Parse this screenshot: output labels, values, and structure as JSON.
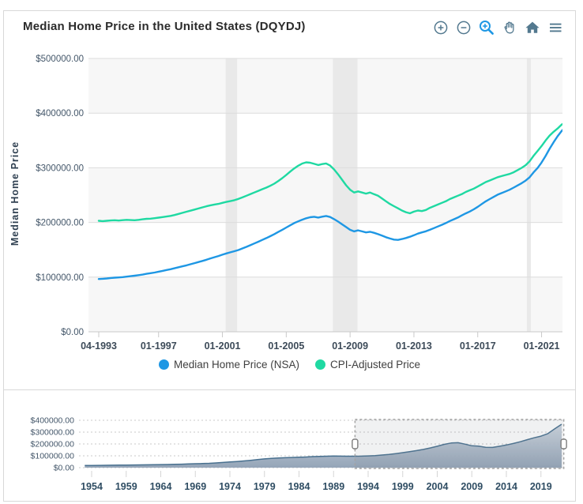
{
  "header": {
    "title": "Median Home Price in the United States (DQYDJ)"
  },
  "toolbar": {
    "icon_color": "#53798f",
    "active_icon_color": "#1e97e4",
    "buttons": [
      "zoom-in",
      "zoom-out",
      "box-zoom",
      "pan",
      "reset-home",
      "menu"
    ],
    "active_button": "box-zoom"
  },
  "colors": {
    "card_border": "#d8d8d8",
    "plot_band_gray": "#f7f7f7",
    "recession_band": "#e9e9e9",
    "gridline": "#dcdcdc",
    "axis_line": "#c9c9c9",
    "nav_grid_dotted": "#c8c8c8",
    "nav_line": "#48708f",
    "nav_fill_top": "#ccd5df",
    "nav_fill_bottom": "#8fa0b4",
    "selection_border": "#a3a3a3"
  },
  "chart_data": [
    {
      "type": "line",
      "title": "Median Home Price in the United States (DQYDJ)",
      "xlabel": "",
      "ylabel": "Median Home Price",
      "ylim": [
        0,
        500000
      ],
      "grid": "horizontal gridlines with alternating interlaced gray bands",
      "legend_position": "bottom",
      "y_tick_labels": [
        "$500000.00",
        "$400000.00",
        "$300000.00",
        "$200000.00",
        "$100000.00",
        "$0.00"
      ],
      "x_ticks": [
        {
          "label": "04-1993",
          "year": 1993.25
        },
        {
          "label": "01-1997",
          "year": 1997
        },
        {
          "label": "01-2001",
          "year": 2001
        },
        {
          "label": "01-2005",
          "year": 2005
        },
        {
          "label": "01-2009",
          "year": 2009
        },
        {
          "label": "01-2013",
          "year": 2013
        },
        {
          "label": "01-2017",
          "year": 2017
        },
        {
          "label": "01-2021",
          "year": 2021
        }
      ],
      "x_start_year": 1993.25,
      "x_step_years": 0.25,
      "recession_bands": [
        [
          2001.2,
          2001.92
        ],
        [
          2007.92,
          2009.46
        ],
        [
          2020.08,
          2020.33
        ]
      ],
      "series": [
        {
          "name": "Median Home Price (NSA)",
          "color": "#1e97e4",
          "values": [
            96600,
            97000,
            97600,
            98400,
            99000,
            99400,
            100000,
            100800,
            101800,
            102600,
            103600,
            104600,
            106000,
            107200,
            108400,
            110000,
            111400,
            113000,
            114400,
            116200,
            118000,
            119800,
            121600,
            123600,
            125600,
            127600,
            129600,
            131800,
            134200,
            136400,
            138600,
            141000,
            143400,
            145400,
            147400,
            149600,
            152400,
            155400,
            158400,
            161600,
            164800,
            168000,
            171400,
            174800,
            178600,
            182600,
            186600,
            190800,
            194800,
            198800,
            202000,
            205000,
            207600,
            209600,
            210400,
            209000,
            210600,
            211800,
            210000,
            206000,
            201600,
            196600,
            191600,
            186600,
            183600,
            185600,
            183600,
            181800,
            183000,
            181000,
            178600,
            175800,
            173000,
            170600,
            168600,
            168000,
            169600,
            171600,
            173800,
            176600,
            179600,
            181800,
            183800,
            186600,
            189600,
            192600,
            195600,
            198800,
            202600,
            205800,
            209000,
            212800,
            216600,
            220000,
            224000,
            228600,
            233600,
            238600,
            242800,
            246800,
            250800,
            253800,
            256800,
            259800,
            263800,
            267800,
            271800,
            276600,
            282600,
            291600,
            299600,
            309600,
            321600,
            334600,
            346600,
            357600,
            367000,
            375000
          ]
        },
        {
          "name": "CPI-Adjusted Price",
          "color": "#1fd9a2",
          "values": [
            203000,
            202400,
            203000,
            203600,
            204000,
            203400,
            204200,
            204800,
            204400,
            204000,
            204800,
            205800,
            206600,
            207000,
            207800,
            208800,
            209800,
            210800,
            212000,
            213600,
            215600,
            217600,
            219600,
            221600,
            223600,
            225600,
            227600,
            229600,
            231400,
            232800,
            234000,
            235800,
            237600,
            239000,
            240800,
            243000,
            245800,
            248800,
            251800,
            254800,
            257800,
            260800,
            263800,
            267000,
            271000,
            275800,
            281000,
            287000,
            293000,
            298800,
            303800,
            307800,
            310000,
            309200,
            307200,
            305000,
            306800,
            308000,
            304000,
            297000,
            288000,
            278000,
            268000,
            260000,
            254800,
            256800,
            254800,
            252800,
            254800,
            251800,
            248800,
            243800,
            238800,
            233800,
            229800,
            225800,
            221800,
            218800,
            216800,
            219800,
            221800,
            220800,
            222800,
            226800,
            229800,
            232800,
            235800,
            238800,
            242800,
            245800,
            248800,
            251800,
            255800,
            258800,
            261800,
            265800,
            269800,
            273800,
            276800,
            279800,
            282800,
            284800,
            286800,
            288800,
            291800,
            295800,
            299800,
            304800,
            311800,
            321800,
            330800,
            339800,
            349800,
            358800,
            365800,
            371800,
            378800,
            384000
          ]
        }
      ]
    },
    {
      "type": "area",
      "title": "navigator",
      "ylim": [
        0,
        400000
      ],
      "y_tick_labels": [
        "$400000.00",
        "$300000.00",
        "$200000.00",
        "$100000.00",
        "$0.00"
      ],
      "x_ticks": [
        {
          "label": "1954",
          "year": 1954
        },
        {
          "label": "1959",
          "year": 1959
        },
        {
          "label": "1964",
          "year": 1964
        },
        {
          "label": "1969",
          "year": 1969
        },
        {
          "label": "1974",
          "year": 1974
        },
        {
          "label": "1979",
          "year": 1979
        },
        {
          "label": "1984",
          "year": 1984
        },
        {
          "label": "1989",
          "year": 1989
        },
        {
          "label": "1994",
          "year": 1994
        },
        {
          "label": "1999",
          "year": 1999
        },
        {
          "label": "2004",
          "year": 2004
        },
        {
          "label": "2009",
          "year": 2009
        },
        {
          "label": "2014",
          "year": 2014
        },
        {
          "label": "2019",
          "year": 2019
        }
      ],
      "x_start_year": 1953,
      "x_step_years": 1,
      "values": [
        18000,
        18600,
        19400,
        20200,
        20800,
        21400,
        22200,
        22800,
        23400,
        24200,
        25000,
        26000,
        27000,
        28200,
        29600,
        31400,
        33400,
        35000,
        37000,
        40000,
        44000,
        48000,
        52000,
        56600,
        62000,
        68000,
        74000,
        78000,
        82000,
        84000,
        86000,
        88000,
        90000,
        93000,
        95000,
        96600,
        98000,
        97600,
        97000,
        96600,
        97200,
        99200,
        102200,
        106600,
        112200,
        118800,
        126600,
        135200,
        144200,
        154000,
        166400,
        180600,
        196600,
        208200,
        210400,
        199000,
        184800,
        181000,
        172000,
        170800,
        180400,
        191000,
        204000,
        218400,
        235900,
        252000,
        265800,
        287600,
        328100,
        366500
      ],
      "selection": {
        "start_year": 1992.1,
        "end_year": 2022.3
      }
    }
  ]
}
